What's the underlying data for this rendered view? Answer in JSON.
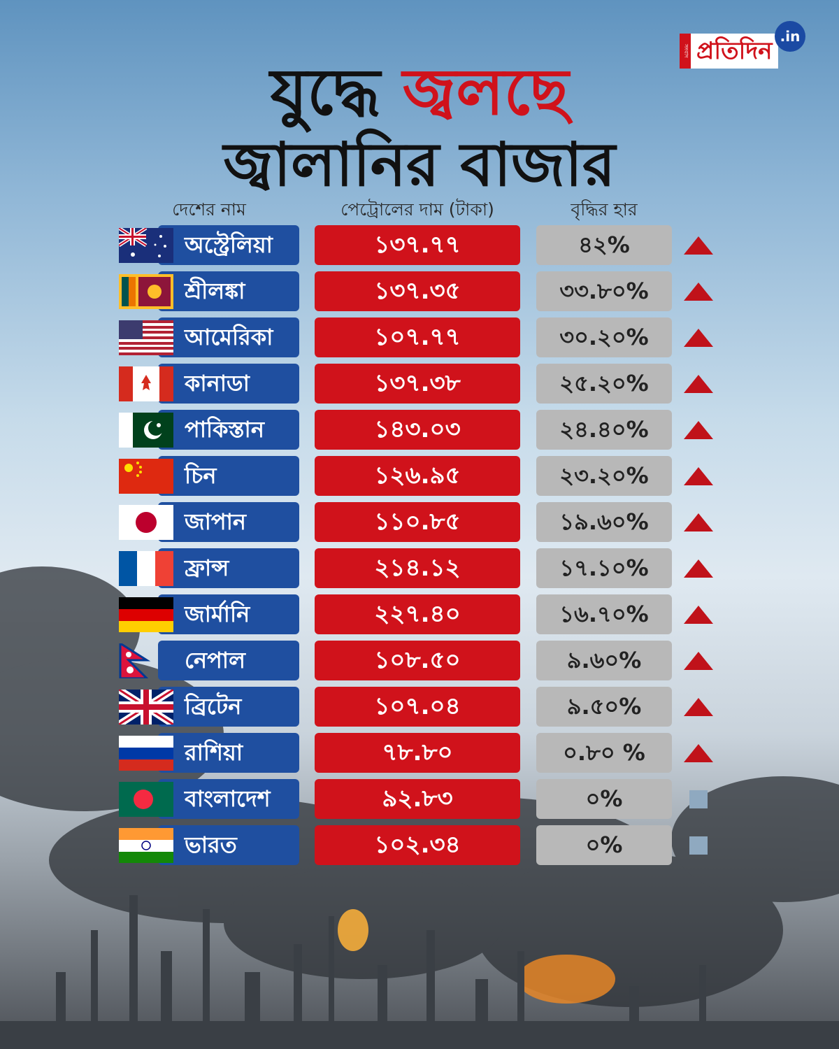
{
  "header": {
    "logo": {
      "side": "সংবাদ",
      "name": "প্রতিদিন",
      "suffix": ".in"
    },
    "title": {
      "line1_black": "যুদ্ধে",
      "line1_red": "জ্বলছে",
      "line2": "জ্বালানির বাজার"
    }
  },
  "table": {
    "columns": [
      "দেশের নাম",
      "পেট্রোলের দাম (টাকা)",
      "বৃদ্ধির হার"
    ],
    "rows": [
      {
        "country": "অস্ট্রেলিয়া",
        "price": "১৩৭.৭৭",
        "rate": "৪২%",
        "trend": "up"
      },
      {
        "country": "শ্রীলঙ্কা",
        "price": "১৩৭.৩৫",
        "rate": "৩৩.৮০%",
        "trend": "up"
      },
      {
        "country": "আমেরিকা",
        "price": "১০৭.৭৭",
        "rate": "৩০.২০%",
        "trend": "up"
      },
      {
        "country": "কানাডা",
        "price": "১৩৭.৩৮",
        "rate": "২৫.২০%",
        "trend": "up"
      },
      {
        "country": "পাকিস্তান",
        "price": "১৪৩.০৩",
        "rate": "২৪.৪০%",
        "trend": "up"
      },
      {
        "country": "চিন",
        "price": "১২৬.৯৫",
        "rate": "২৩.২০%",
        "trend": "up"
      },
      {
        "country": "জাপান",
        "price": "১১০.৮৫",
        "rate": "১৯.৬০%",
        "trend": "up"
      },
      {
        "country": "ফ্রান্স",
        "price": "২১৪.১২",
        "rate": "১৭.১০%",
        "trend": "up"
      },
      {
        "country": "জার্মানি",
        "price": "২২৭.৪০",
        "rate": "১৬.৭০%",
        "trend": "up"
      },
      {
        "country": "নেপাল",
        "price": "১০৮.৫০",
        "rate": "৯.৬০%",
        "trend": "up"
      },
      {
        "country": "ব্রিটেন",
        "price": "১০৭.০৪",
        "rate": "৯.৫০%",
        "trend": "up"
      },
      {
        "country": "রাশিয়া",
        "price": "৭৮.৮০",
        "rate": "০.৮০ %",
        "trend": "up"
      },
      {
        "country": "বাংলাদেশ",
        "price": "৯২.৮৩",
        "rate": "০%",
        "trend": "flat"
      },
      {
        "country": "ভারত",
        "price": "১০২.৩৪",
        "rate": "০%",
        "trend": "flat"
      }
    ]
  }
}
